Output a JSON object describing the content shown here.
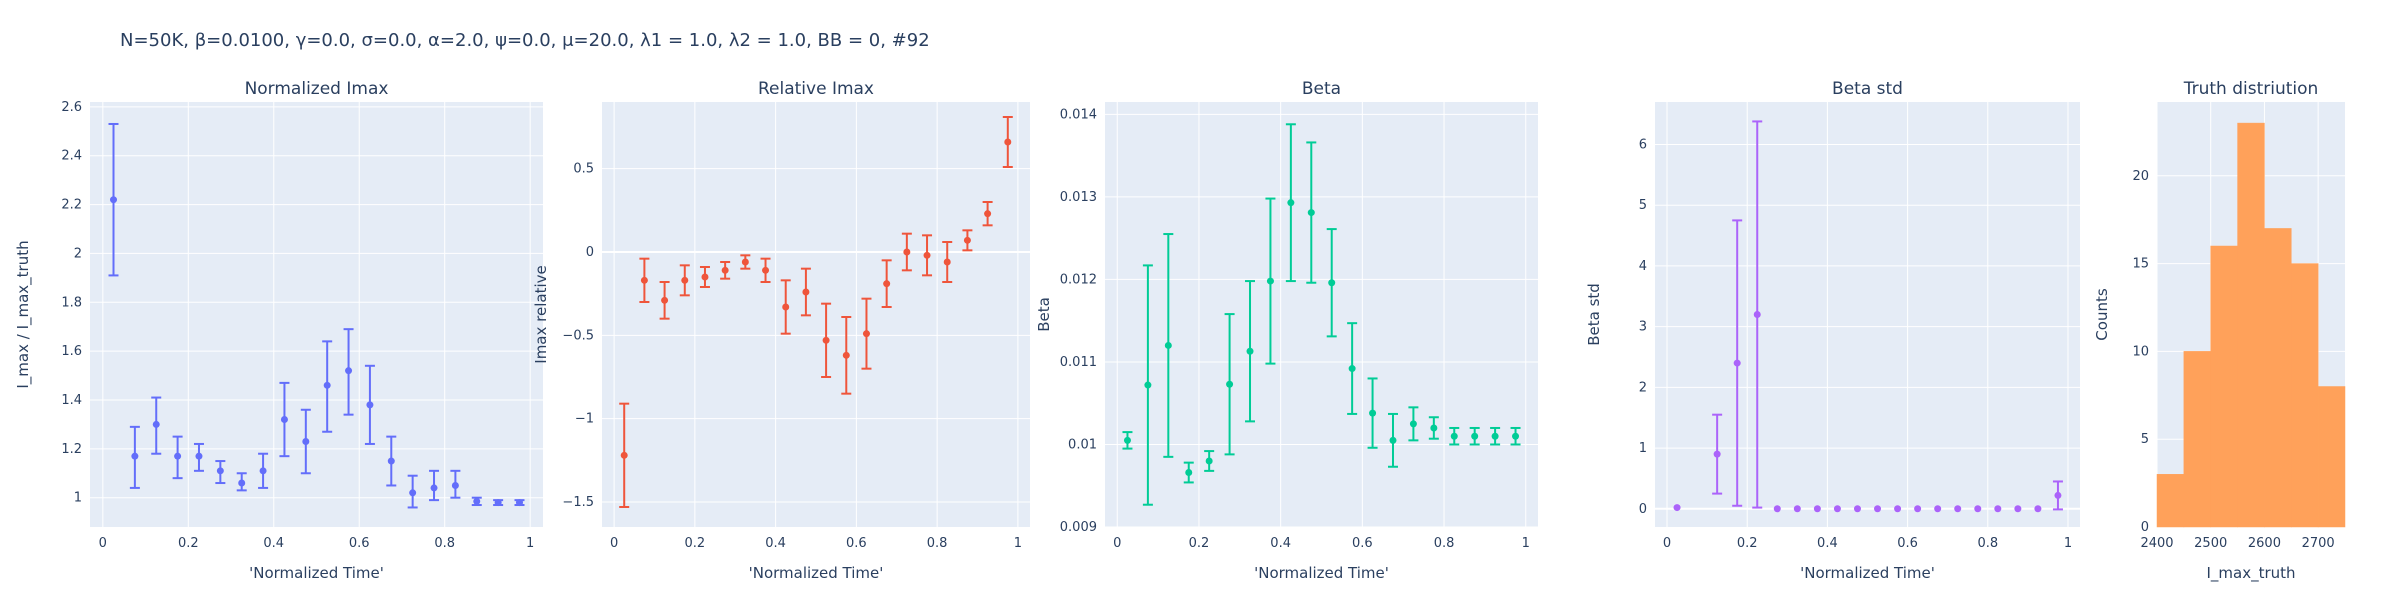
{
  "suptitle": "N=50K, β=0.0100, γ=0.0, σ=0.0,  α=2.0, ψ=0.0, μ=20.0, λ1 = 1.0, λ2 = 1.0, BB = 0, #92",
  "colors": {
    "plot_bg": "#e5ecf6",
    "grid": "#ffffff",
    "text": "#2a3f5f",
    "blue": "#636efa",
    "red": "#ef553b",
    "green": "#00cc96",
    "purple": "#ab63fa",
    "orange": "#ffa15a"
  },
  "chart_data": [
    {
      "type": "scatter",
      "title": "Normalized Imax",
      "xlabel": "'Normalized Time'",
      "ylabel": "I_max / I_max_truth",
      "color": "blue",
      "xlim": [
        -0.03,
        1.03
      ],
      "ylim": [
        0.88,
        2.62
      ],
      "xticks": [
        0,
        0.2,
        0.4,
        0.6,
        0.8,
        1
      ],
      "xtick_labels": [
        "0",
        "0.2",
        "0.4",
        "0.6",
        "0.8",
        "1"
      ],
      "yticks": [
        1,
        1.2,
        1.4,
        1.6,
        1.8,
        2,
        2.2,
        2.4,
        2.6
      ],
      "ytick_labels": [
        "1",
        "1.2",
        "1.4",
        "1.6",
        "1.8",
        "2",
        "2.2",
        "2.4",
        "2.6"
      ],
      "x": [
        0.025,
        0.075,
        0.125,
        0.175,
        0.225,
        0.275,
        0.325,
        0.375,
        0.425,
        0.475,
        0.525,
        0.575,
        0.625,
        0.675,
        0.725,
        0.775,
        0.825,
        0.875,
        0.925,
        0.975
      ],
      "y": [
        2.22,
        1.17,
        1.3,
        1.17,
        1.17,
        1.11,
        1.06,
        1.11,
        1.32,
        1.23,
        1.46,
        1.52,
        1.38,
        1.15,
        1.02,
        1.04,
        1.05,
        0.985,
        0.98,
        0.98
      ],
      "err_plus": [
        0.31,
        0.12,
        0.11,
        0.08,
        0.05,
        0.04,
        0.04,
        0.07,
        0.15,
        0.13,
        0.18,
        0.17,
        0.16,
        0.1,
        0.07,
        0.07,
        0.06,
        0.015,
        0.01,
        0.01
      ],
      "err_minus": [
        0.31,
        0.13,
        0.12,
        0.09,
        0.06,
        0.05,
        0.03,
        0.07,
        0.15,
        0.13,
        0.19,
        0.18,
        0.16,
        0.1,
        0.06,
        0.05,
        0.05,
        0.015,
        0.01,
        0.01
      ]
    },
    {
      "type": "scatter",
      "title": "Relative Imax",
      "xlabel": "'Normalized Time'",
      "ylabel": "Imax relative",
      "color": "red",
      "xlim": [
        -0.03,
        1.03
      ],
      "ylim": [
        -1.65,
        0.9
      ],
      "xticks": [
        0,
        0.2,
        0.4,
        0.6,
        0.8,
        1
      ],
      "xtick_labels": [
        "0",
        "0.2",
        "0.4",
        "0.6",
        "0.8",
        "1"
      ],
      "yticks": [
        -1.5,
        -1,
        -0.5,
        0,
        0.5
      ],
      "ytick_labels": [
        "−1.5",
        "−1",
        "−0.5",
        "0",
        "0.5"
      ],
      "x": [
        0.025,
        0.075,
        0.125,
        0.175,
        0.225,
        0.275,
        0.325,
        0.375,
        0.425,
        0.475,
        0.525,
        0.575,
        0.625,
        0.675,
        0.725,
        0.775,
        0.825,
        0.875,
        0.925,
        0.975
      ],
      "y": [
        -1.22,
        -0.17,
        -0.29,
        -0.17,
        -0.15,
        -0.11,
        -0.06,
        -0.11,
        -0.33,
        -0.24,
        -0.53,
        -0.62,
        -0.49,
        -0.19,
        0.0,
        -0.02,
        -0.06,
        0.07,
        0.23,
        0.66
      ],
      "err_plus": [
        0.31,
        0.13,
        0.11,
        0.09,
        0.06,
        0.05,
        0.04,
        0.07,
        0.16,
        0.14,
        0.22,
        0.23,
        0.21,
        0.14,
        0.11,
        0.12,
        0.12,
        0.06,
        0.07,
        0.15
      ],
      "err_minus": [
        0.31,
        0.13,
        0.11,
        0.09,
        0.06,
        0.05,
        0.04,
        0.07,
        0.16,
        0.14,
        0.22,
        0.23,
        0.21,
        0.14,
        0.11,
        0.12,
        0.12,
        0.06,
        0.07,
        0.15
      ]
    },
    {
      "type": "scatter",
      "title": "Beta",
      "xlabel": "'Normalized Time'",
      "ylabel": "Beta",
      "color": "green",
      "xlim": [
        -0.03,
        1.03
      ],
      "ylim": [
        0.009,
        0.01415
      ],
      "xticks": [
        0,
        0.2,
        0.4,
        0.6,
        0.8,
        1
      ],
      "xtick_labels": [
        "0",
        "0.2",
        "0.4",
        "0.6",
        "0.8",
        "1"
      ],
      "yticks": [
        0.009,
        0.01,
        0.011,
        0.012,
        0.013,
        0.014
      ],
      "ytick_labels": [
        "0.009",
        "0.01",
        "0.011",
        "0.012",
        "0.013",
        "0.014"
      ],
      "x": [
        0.025,
        0.075,
        0.125,
        0.175,
        0.225,
        0.275,
        0.325,
        0.375,
        0.425,
        0.475,
        0.525,
        0.575,
        0.625,
        0.675,
        0.725,
        0.775,
        0.825,
        0.875,
        0.925,
        0.975
      ],
      "y": [
        0.01005,
        0.01072,
        0.0112,
        0.00966,
        0.0098,
        0.01073,
        0.01113,
        0.01198,
        0.01293,
        0.01281,
        0.01196,
        0.01092,
        0.01038,
        0.01005,
        0.01025,
        0.0102,
        0.0101,
        0.0101,
        0.0101,
        0.0101
      ],
      "err_plus": [
        0.0001,
        0.00145,
        0.00135,
        0.00012,
        0.00012,
        0.00085,
        0.00085,
        0.001,
        0.00095,
        0.00085,
        0.00065,
        0.00055,
        0.00042,
        0.00032,
        0.0002,
        0.00013,
        0.0001,
        0.0001,
        0.0001,
        0.0001
      ],
      "err_minus": [
        0.0001,
        0.00145,
        0.00135,
        0.00012,
        0.00012,
        0.00085,
        0.00085,
        0.001,
        0.00095,
        0.00085,
        0.00065,
        0.00055,
        0.00042,
        0.00032,
        0.0002,
        0.00013,
        0.0001,
        0.0001,
        0.0001,
        0.0001
      ]
    },
    {
      "type": "scatter",
      "title": "Beta std",
      "xlabel": "'Normalized Time'",
      "ylabel": "Beta std",
      "color": "purple",
      "xlim": [
        -0.03,
        1.03
      ],
      "ylim": [
        -0.3,
        6.7
      ],
      "xticks": [
        0,
        0.2,
        0.4,
        0.6,
        0.8,
        1
      ],
      "xtick_labels": [
        "0",
        "0.2",
        "0.4",
        "0.6",
        "0.8",
        "1"
      ],
      "yticks": [
        0,
        1,
        2,
        3,
        4,
        5,
        6
      ],
      "ytick_labels": [
        "0",
        "1",
        "2",
        "3",
        "4",
        "5",
        "6"
      ],
      "x": [
        0.025,
        0.075,
        0.125,
        0.175,
        0.225,
        0.275,
        0.325,
        0.375,
        0.425,
        0.475,
        0.525,
        0.575,
        0.625,
        0.675,
        0.725,
        0.775,
        0.825,
        0.875,
        0.925,
        0.975
      ],
      "y": [
        0.02,
        null,
        0.9,
        2.4,
        3.2,
        0.0,
        0.0,
        0.0,
        0.0,
        0.0,
        0.0,
        0.0,
        0.0,
        0.0,
        0.0,
        0.0,
        0.0,
        0.0,
        0.0,
        0.22
      ],
      "err_plus": [
        0,
        0,
        0.65,
        2.35,
        3.18,
        0,
        0,
        0,
        0,
        0,
        0,
        0,
        0,
        0,
        0,
        0,
        0,
        0,
        0,
        0.23
      ],
      "err_minus": [
        0,
        0,
        0.65,
        2.35,
        3.18,
        0,
        0,
        0,
        0,
        0,
        0,
        0,
        0,
        0,
        0,
        0,
        0,
        0,
        0,
        0.23
      ]
    },
    {
      "type": "histogram",
      "title": "Truth distriution",
      "xlabel": "I_max_truth",
      "ylabel": "Counts",
      "color": "orange",
      "xlim": [
        2400,
        2750
      ],
      "ylim": [
        0,
        24.2
      ],
      "xticks": [
        2400,
        2500,
        2600,
        2700
      ],
      "xtick_labels": [
        "2400",
        "2500",
        "2600",
        "2700"
      ],
      "yticks": [
        0,
        5,
        10,
        15,
        20
      ],
      "ytick_labels": [
        "0",
        "5",
        "10",
        "15",
        "20"
      ],
      "bin_edges": [
        2400,
        2450,
        2500,
        2550,
        2600,
        2650,
        2700,
        2750
      ],
      "counts": [
        3,
        10,
        16,
        23,
        17,
        15,
        8
      ]
    }
  ]
}
